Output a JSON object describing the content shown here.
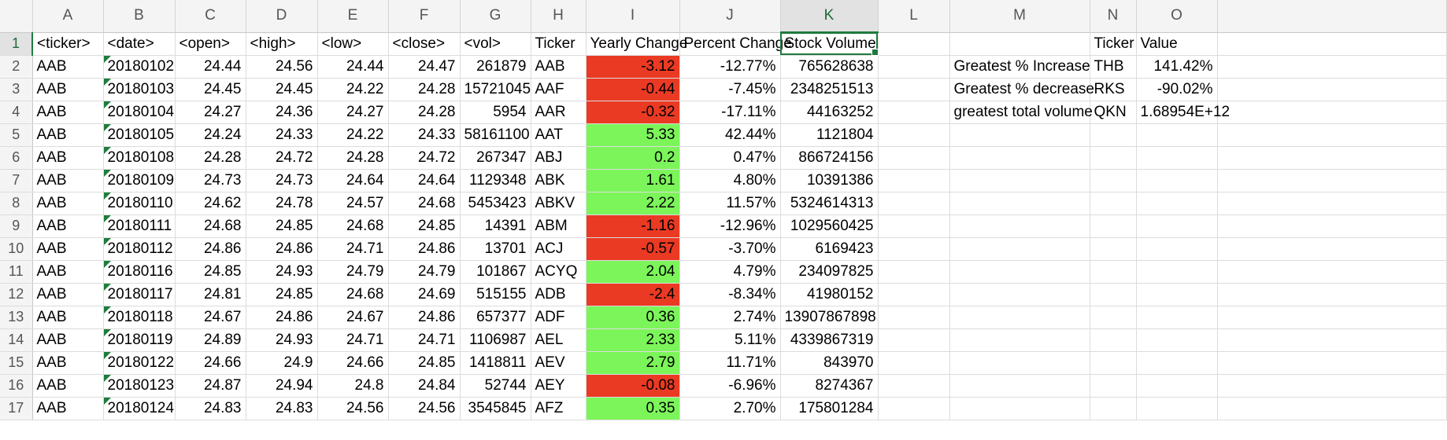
{
  "columns": [
    "A",
    "B",
    "C",
    "D",
    "E",
    "F",
    "G",
    "H",
    "I",
    "J",
    "K",
    "L",
    "M",
    "N",
    "O"
  ],
  "active_column": "K",
  "active_row": "1",
  "header_row": {
    "row": "1",
    "cells": [
      "<ticker>",
      "<date>",
      "<open>",
      "<high>",
      "<low>",
      "<close>",
      "<vol>",
      "Ticker",
      "Yearly Change",
      "Percent Change",
      "Stock Volume",
      "",
      "",
      "Ticker",
      "Value"
    ]
  },
  "rows": [
    {
      "row": "2",
      "cells": [
        "AAB",
        "20180102",
        "24.44",
        "24.56",
        "24.44",
        "24.47",
        "261879",
        "AAB",
        "-3.12",
        "-12.77%",
        "765628638",
        "",
        "Greatest % Increase",
        "THB",
        "141.42%"
      ]
    },
    {
      "row": "3",
      "cells": [
        "AAB",
        "20180103",
        "24.45",
        "24.45",
        "24.22",
        "24.28",
        "15721045",
        "AAF",
        "-0.44",
        "-7.45%",
        "2348251513",
        "",
        "Greatest % decrease",
        "RKS",
        "-90.02%"
      ]
    },
    {
      "row": "4",
      "cells": [
        "AAB",
        "20180104",
        "24.27",
        "24.36",
        "24.27",
        "24.28",
        "5954",
        "AAR",
        "-0.32",
        "-17.11%",
        "44163252",
        "",
        "greatest total volume",
        "QKN",
        "1.68954E+12"
      ]
    },
    {
      "row": "5",
      "cells": [
        "AAB",
        "20180105",
        "24.24",
        "24.33",
        "24.22",
        "24.33",
        "58161100",
        "AAT",
        "5.33",
        "42.44%",
        "1121804",
        "",
        "",
        "",
        ""
      ]
    },
    {
      "row": "6",
      "cells": [
        "AAB",
        "20180108",
        "24.28",
        "24.72",
        "24.28",
        "24.72",
        "267347",
        "ABJ",
        "0.2",
        "0.47%",
        "866724156",
        "",
        "",
        "",
        ""
      ]
    },
    {
      "row": "7",
      "cells": [
        "AAB",
        "20180109",
        "24.73",
        "24.73",
        "24.64",
        "24.64",
        "1129348",
        "ABK",
        "1.61",
        "4.80%",
        "10391386",
        "",
        "",
        "",
        ""
      ]
    },
    {
      "row": "8",
      "cells": [
        "AAB",
        "20180110",
        "24.62",
        "24.78",
        "24.57",
        "24.68",
        "5453423",
        "ABKV",
        "2.22",
        "11.57%",
        "5324614313",
        "",
        "",
        "",
        ""
      ]
    },
    {
      "row": "9",
      "cells": [
        "AAB",
        "20180111",
        "24.68",
        "24.85",
        "24.68",
        "24.85",
        "14391",
        "ABM",
        "-1.16",
        "-12.96%",
        "1029560425",
        "",
        "",
        "",
        ""
      ]
    },
    {
      "row": "10",
      "cells": [
        "AAB",
        "20180112",
        "24.86",
        "24.86",
        "24.71",
        "24.86",
        "13701",
        "ACJ",
        "-0.57",
        "-3.70%",
        "6169423",
        "",
        "",
        "",
        ""
      ]
    },
    {
      "row": "11",
      "cells": [
        "AAB",
        "20180116",
        "24.85",
        "24.93",
        "24.79",
        "24.79",
        "101867",
        "ACYQ",
        "2.04",
        "4.79%",
        "234097825",
        "",
        "",
        "",
        ""
      ]
    },
    {
      "row": "12",
      "cells": [
        "AAB",
        "20180117",
        "24.81",
        "24.85",
        "24.68",
        "24.69",
        "515155",
        "ADB",
        "-2.4",
        "-8.34%",
        "41980152",
        "",
        "",
        "",
        ""
      ]
    },
    {
      "row": "13",
      "cells": [
        "AAB",
        "20180118",
        "24.67",
        "24.86",
        "24.67",
        "24.86",
        "657377",
        "ADF",
        "0.36",
        "2.74%",
        "13907867898",
        "",
        "",
        "",
        ""
      ]
    },
    {
      "row": "14",
      "cells": [
        "AAB",
        "20180119",
        "24.89",
        "24.93",
        "24.71",
        "24.71",
        "1106987",
        "AEL",
        "2.33",
        "5.11%",
        "4339867319",
        "",
        "",
        "",
        ""
      ]
    },
    {
      "row": "15",
      "cells": [
        "AAB",
        "20180122",
        "24.66",
        "24.9",
        "24.66",
        "24.85",
        "1418811",
        "AEV",
        "2.79",
        "11.71%",
        "843970",
        "",
        "",
        "",
        ""
      ]
    },
    {
      "row": "16",
      "cells": [
        "AAB",
        "20180123",
        "24.87",
        "24.94",
        "24.8",
        "24.84",
        "52744",
        "AEY",
        "-0.08",
        "-6.96%",
        "8274367",
        "",
        "",
        "",
        ""
      ]
    },
    {
      "row": "17",
      "cells": [
        "AAB",
        "20180124",
        "24.83",
        "24.83",
        "24.56",
        "24.56",
        "3545845",
        "AFZ",
        "0.35",
        "2.70%",
        "175801284",
        "",
        "",
        "",
        ""
      ]
    }
  ],
  "colors": {
    "positive_change": "#7cf55a",
    "negative_change": "#ea3a24",
    "selection": "#1f7a3e",
    "header_bg": "#f4f4f4"
  },
  "icons": {
    "error_indicator": "green-triangle-icon"
  }
}
